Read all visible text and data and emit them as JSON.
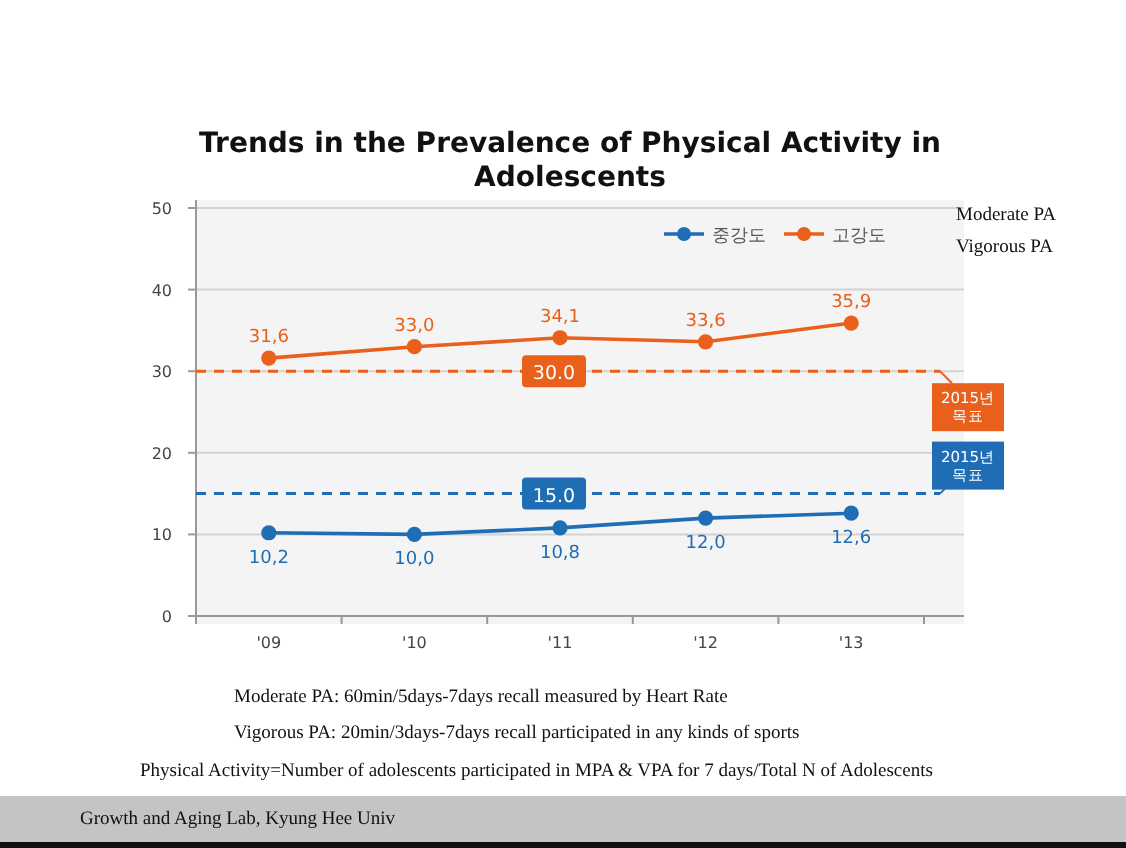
{
  "chart_data": {
    "type": "line",
    "title": "Trends in the Prevalence of Physical Activity in Adolescents",
    "categories": [
      "'09",
      "'10",
      "'11",
      "'12",
      "'13"
    ],
    "series": [
      {
        "name": "중강도",
        "color": "#1f6db5",
        "values": [
          10.2,
          10.0,
          10.8,
          12.0,
          12.6
        ],
        "value_labels": [
          "10,2",
          "10,0",
          "10,8",
          "12,0",
          "12,6"
        ]
      },
      {
        "name": "고강도",
        "color": "#e8601c",
        "values": [
          31.6,
          33.0,
          34.1,
          33.6,
          35.9
        ],
        "value_labels": [
          "31,6",
          "33,0",
          "34,1",
          "33,6",
          "35,9"
        ]
      }
    ],
    "ylim": [
      0,
      50
    ],
    "yticks": [
      0,
      10,
      20,
      30,
      40,
      50
    ],
    "grid": "y",
    "legend": "top right",
    "marker": "circle",
    "line_style": "solid",
    "ref_lines": [
      {
        "axis": "y",
        "value": 30,
        "label": "30.0",
        "color": "#e8601c",
        "line_style": "dashed"
      },
      {
        "axis": "y",
        "value": 15,
        "label": "15.0",
        "color": "#1f6db5",
        "line_style": "dashed"
      }
    ],
    "annotations": [
      "2015년 목표",
      "2015년 목표",
      "Moderate PA",
      "Vigorous PA",
      "Moderate PA: 60min/5days-7days recall measured by Heart Rate",
      "Vigorous PA: 20min/3days-7days recall participated in any kinds of sports",
      "Physical Activity=Number of adolescents participated in MPA & VPA for 7 days/Total N of Adolescents",
      "Growth and Aging Lab, Kyung Hee Univ"
    ]
  }
}
